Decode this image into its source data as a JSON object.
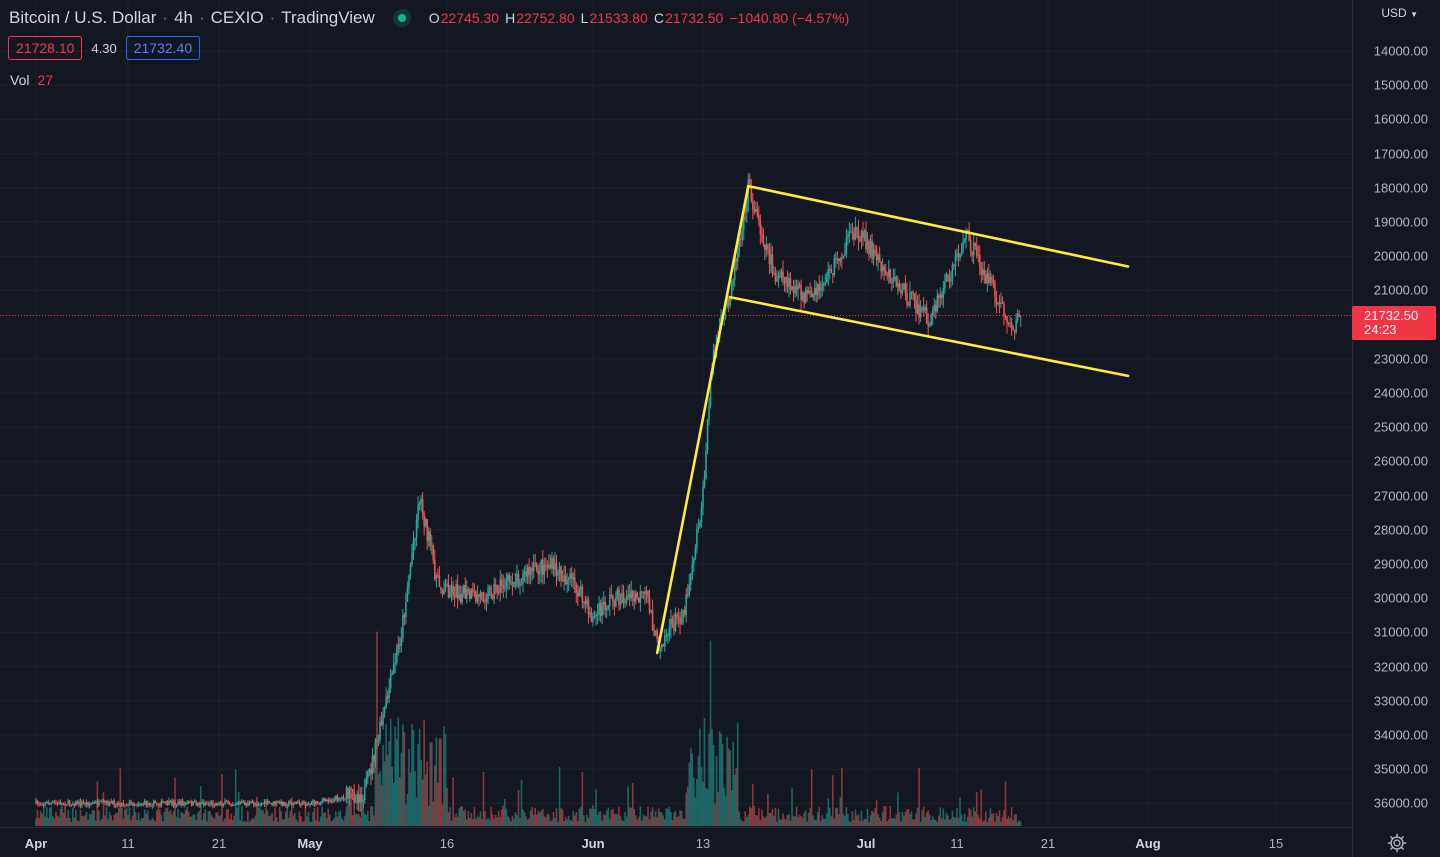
{
  "legend": {
    "symbol": "Bitcoin / U.S. Dollar",
    "interval": "4h",
    "exchange": "CEXIO",
    "source": "TradingView",
    "open_key": "O",
    "open": "22745.30",
    "high_key": "H",
    "high": "22752.80",
    "low_key": "L",
    "low": "21533.80",
    "close_key": "C",
    "close": "21732.50",
    "change": "−1040.80 (−4.57%)"
  },
  "bidask": {
    "bid": "21728.10",
    "spread": "4.30",
    "ask": "21732.40"
  },
  "volume": {
    "label": "Vol",
    "value": "27"
  },
  "price_axis": {
    "currency": "USD",
    "ticks": [
      "14000.00",
      "15000.00",
      "16000.00",
      "17000.00",
      "18000.00",
      "19000.00",
      "20000.00",
      "21000.00",
      "23000.00",
      "24000.00",
      "25000.00",
      "26000.00",
      "27000.00",
      "28000.00",
      "29000.00",
      "30000.00",
      "31000.00",
      "32000.00",
      "33000.00",
      "34000.00",
      "35000.00",
      "36000.00"
    ],
    "last_price": "21732.50",
    "countdown": "24:23"
  },
  "time_axis": {
    "labels": [
      "Apr",
      "11",
      "21",
      "May",
      "16",
      "Jun",
      "13",
      "Jul",
      "11",
      "21",
      "Aug",
      "15"
    ]
  },
  "colors": {
    "background": "#131722",
    "up": "#26a69a",
    "down": "#ef5350",
    "drawing": "#ffeb3b",
    "last_price": "#f23645"
  },
  "icons": {
    "settings": "gear-icon",
    "currency_menu": "chevron-down-icon"
  },
  "chart_data": {
    "type": "candlestick",
    "symbol": "Bitcoin / U.S. Dollar",
    "interval": "4h",
    "y_axis_inverted": true,
    "ylim": [
      36600,
      13300
    ],
    "x_labels": [
      "Apr",
      "11",
      "21",
      "May",
      "16",
      "Jun",
      "13",
      "Jul",
      "11",
      "21",
      "Aug",
      "15"
    ],
    "last_close": 21732.5,
    "series": [
      {
        "name": "price",
        "path": [
          {
            "date": "Apr 1",
            "price": 36000
          },
          {
            "date": "May 1",
            "price": 36000
          },
          {
            "date": "May 7",
            "price": 35700
          },
          {
            "date": "May 9",
            "price": 33500
          },
          {
            "date": "May 11",
            "price": 31000
          },
          {
            "date": "May 12",
            "price": 29000
          },
          {
            "date": "May 13",
            "price": 27000
          },
          {
            "date": "May 15",
            "price": 29600
          },
          {
            "date": "May 19",
            "price": 30000
          },
          {
            "date": "May 23",
            "price": 29500
          },
          {
            "date": "May 27",
            "price": 29000
          },
          {
            "date": "May 30",
            "price": 29600
          },
          {
            "date": "Jun 1",
            "price": 30600
          },
          {
            "date": "Jun 3",
            "price": 30000
          },
          {
            "date": "Jun 7",
            "price": 30000
          },
          {
            "date": "Jun 8",
            "price": 31400
          },
          {
            "date": "Jun 11",
            "price": 30300
          },
          {
            "date": "Jun 13",
            "price": 27000
          },
          {
            "date": "Jun 14",
            "price": 23000
          },
          {
            "date": "Jun 16",
            "price": 21000
          },
          {
            "date": "Jun 18",
            "price": 18000
          },
          {
            "date": "Jun 21",
            "price": 20600
          },
          {
            "date": "Jun 25",
            "price": 21300
          },
          {
            "date": "Jun 30",
            "price": 19200
          },
          {
            "date": "Jul 4",
            "price": 20700
          },
          {
            "date": "Jul 8",
            "price": 21900
          },
          {
            "date": "Jul 12",
            "price": 19400
          },
          {
            "date": "Jul 14",
            "price": 20500
          },
          {
            "date": "Jul 17",
            "price": 22100
          },
          {
            "date": "Jul 18",
            "price": 21732.5
          }
        ]
      }
    ],
    "drawings": {
      "impulse_line": [
        {
          "date": "Jun 8",
          "price": 31600
        },
        {
          "date": "Jun 18",
          "price": 17950
        }
      ],
      "channel_upper": [
        {
          "date": "Jun 18",
          "price": 17950
        },
        {
          "date": "Jul 29",
          "price": 20300
        }
      ],
      "channel_lower": [
        {
          "date": "Jun 16",
          "price": 21200
        },
        {
          "date": "Jul 29",
          "price": 23500
        }
      ]
    },
    "volume_series": {
      "name": "Vol",
      "last": 27
    }
  }
}
